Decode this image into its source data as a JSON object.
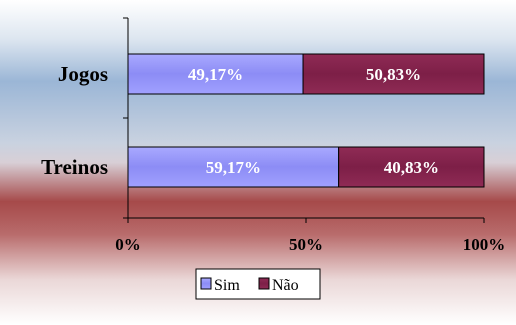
{
  "chart_data": {
    "type": "bar",
    "orientation": "horizontal",
    "stacked": "percent",
    "categories": [
      "Jogos",
      "Treinos"
    ],
    "series": [
      {
        "name": "Sim",
        "values": [
          49.17,
          59.17
        ],
        "labels": [
          "49,17%",
          "59,17%"
        ],
        "color": "#9999ff"
      },
      {
        "name": "Não",
        "values": [
          50.83,
          40.83
        ],
        "labels": [
          "50,83%",
          "40,83%"
        ],
        "color": "#993366"
      }
    ],
    "xlim": [
      0,
      100
    ],
    "xticks": [
      0,
      50,
      100
    ],
    "xtick_labels": [
      "0%",
      "50%",
      "100%"
    ],
    "grid": false,
    "legend": "bottom",
    "background": [
      "#dbe6f1",
      "#a14545",
      "#ffffff"
    ]
  }
}
